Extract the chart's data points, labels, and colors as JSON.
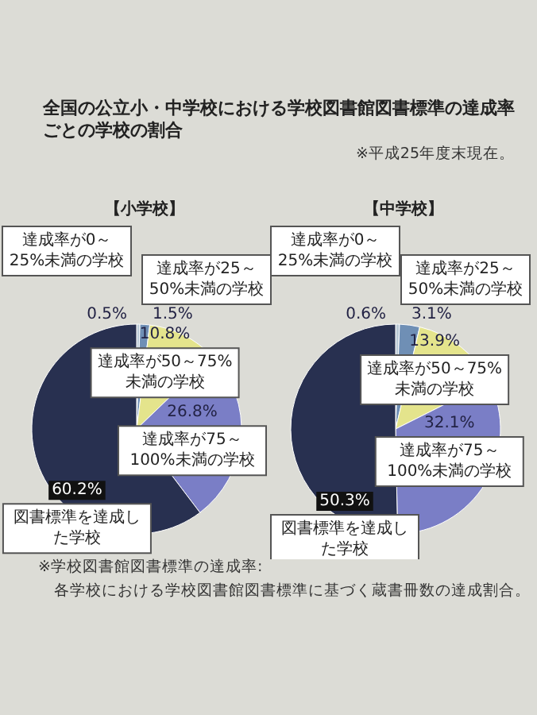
{
  "chart_data": [
    {
      "type": "pie",
      "title": "全国の公立小・中学校における学校図書館図書標準の達成率ごとの学校の割合",
      "subtitle": "【小学校】",
      "annotations": [
        "※平成25年度末現在。",
        "※学校図書館図書標準の達成率:",
        "各学校における学校図書館図書標準に基づく蔵書冊数の達成割合。"
      ],
      "categories": [
        "達成率が0～25%未満の学校",
        "達成率が25～50%未満の学校",
        "達成率が50～75%未満の学校",
        "達成率が75～100%未満の学校",
        "図書標準を達成した学校"
      ],
      "values": [
        0.5,
        1.5,
        10.8,
        26.8,
        60.2
      ],
      "value_labels": [
        "0.5%",
        "1.5%",
        "10.8%",
        "26.8%",
        "60.2%"
      ],
      "colors": [
        "#b9c9d6",
        "#6f8fb5",
        "#e4e48c",
        "#7a7ec6",
        "#283050"
      ]
    },
    {
      "type": "pie",
      "subtitle": "【中学校】",
      "categories": [
        "達成率が0～25%未満の学校",
        "達成率が25～50%未満の学校",
        "達成率が50～75%未満の学校",
        "達成率が75～100%未満の学校",
        "図書標準を達成した学校"
      ],
      "values": [
        0.6,
        3.1,
        13.9,
        32.1,
        50.3
      ],
      "value_labels": [
        "0.6%",
        "3.1%",
        "13.9%",
        "32.1%",
        "50.3%"
      ],
      "colors": [
        "#b9c9d6",
        "#6f8fb5",
        "#e4e48c",
        "#7a7ec6",
        "#283050"
      ]
    }
  ]
}
